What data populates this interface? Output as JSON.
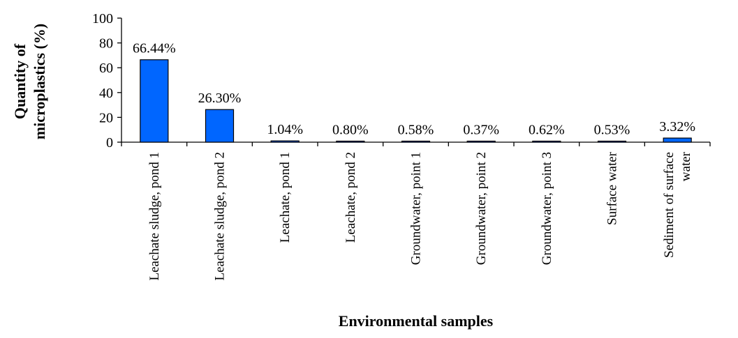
{
  "chart_data": {
    "type": "bar",
    "title": "",
    "xlabel": "Environmental samples",
    "ylabel_lines": [
      "Quantity of",
      "microplastics (%)"
    ],
    "ylim": [
      0,
      100
    ],
    "yticks": [
      "0",
      "20",
      "40",
      "60",
      "80",
      "100"
    ],
    "grid": false,
    "legend": "none",
    "bar_color": "#0066ff",
    "categories": [
      [
        "Leachate sludge, pond 1"
      ],
      [
        "Leachate sludge, pond 2"
      ],
      [
        "Leachate, pond 1"
      ],
      [
        "Leachate, pond 2"
      ],
      [
        "Groundwater, point 1"
      ],
      [
        "Groundwater, point 2"
      ],
      [
        "Groundwater, point 3"
      ],
      [
        "Surface water"
      ],
      [
        "Sediment of surface",
        "water"
      ]
    ],
    "values": [
      66.44,
      26.3,
      1.04,
      0.8,
      0.58,
      0.37,
      0.62,
      0.53,
      3.32
    ],
    "data_labels": [
      "66.44%",
      "26.30%",
      "1.04%",
      "0.80%",
      "0.58%",
      "0.37%",
      "0.62%",
      "0.53%",
      "3.32%"
    ]
  }
}
